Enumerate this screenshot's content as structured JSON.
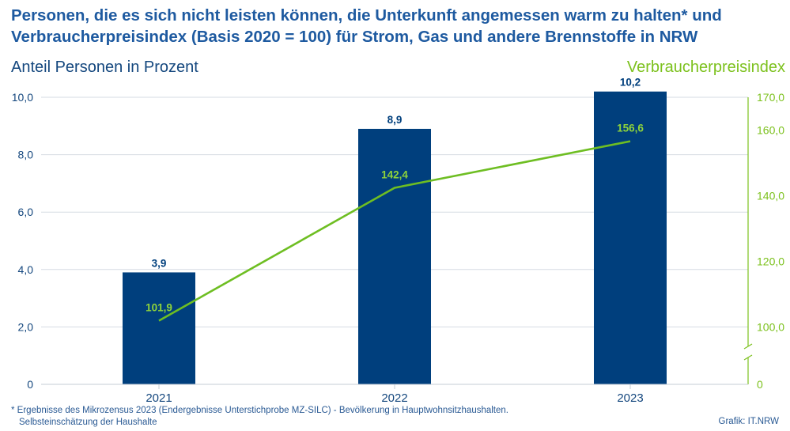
{
  "title": {
    "line1": "Personen, die es sich nicht leisten können, die Unterkunft angemessen warm zu halten* und",
    "line2": "Verbraucherpreisindex (Basis 2020 = 100) für Strom, Gas und andere Brennstoffe in NRW"
  },
  "axis_titles": {
    "left": "Anteil Personen in Prozent",
    "right": "Verbraucherpreisindex"
  },
  "footnote": {
    "line1": "* Ergebnisse des Mikrozensus 2023 (Endergebnisse Unterstichprobe MZ-SILC) - Bevölkerung in Hauptwohnsitzhaushalten.",
    "line2": "Selbsteinschätzung der Haushalte"
  },
  "credit": "Grafik: IT.NRW",
  "colors": {
    "bar": "#003f7d",
    "line": "#6ebe22",
    "grid": "#d6dbe3",
    "axis_text": "#14477e",
    "right_axis_text": "#7cc11d"
  },
  "chart_data": {
    "type": "bar",
    "categories": [
      "2021",
      "2022",
      "2023"
    ],
    "series": [
      {
        "name": "Anteil Personen in Prozent",
        "type": "bar",
        "axis": "left",
        "values": [
          3.9,
          8.9,
          10.2
        ],
        "labels": [
          "3,9",
          "8,9",
          "10,2"
        ]
      },
      {
        "name": "Verbraucherpreisindex",
        "type": "line",
        "axis": "right",
        "values": [
          101.9,
          142.4,
          156.6
        ],
        "labels": [
          "101,9",
          "142,4",
          "156,6"
        ]
      }
    ],
    "y_left": {
      "lim": [
        0,
        10
      ],
      "ticks": [
        0,
        2,
        4,
        6,
        8,
        10
      ],
      "tick_labels": [
        "0",
        "2,0",
        "4,0",
        "6,0",
        "8,0",
        "10,0"
      ]
    },
    "y_right": {
      "lim": [
        80,
        170
      ],
      "axis_break": true,
      "ticks": [
        0,
        100,
        120,
        140,
        160,
        170
      ],
      "tick_labels": [
        "0",
        "100,0",
        "120,0",
        "140,0",
        "160,0",
        "170,0"
      ]
    },
    "grid": true
  }
}
